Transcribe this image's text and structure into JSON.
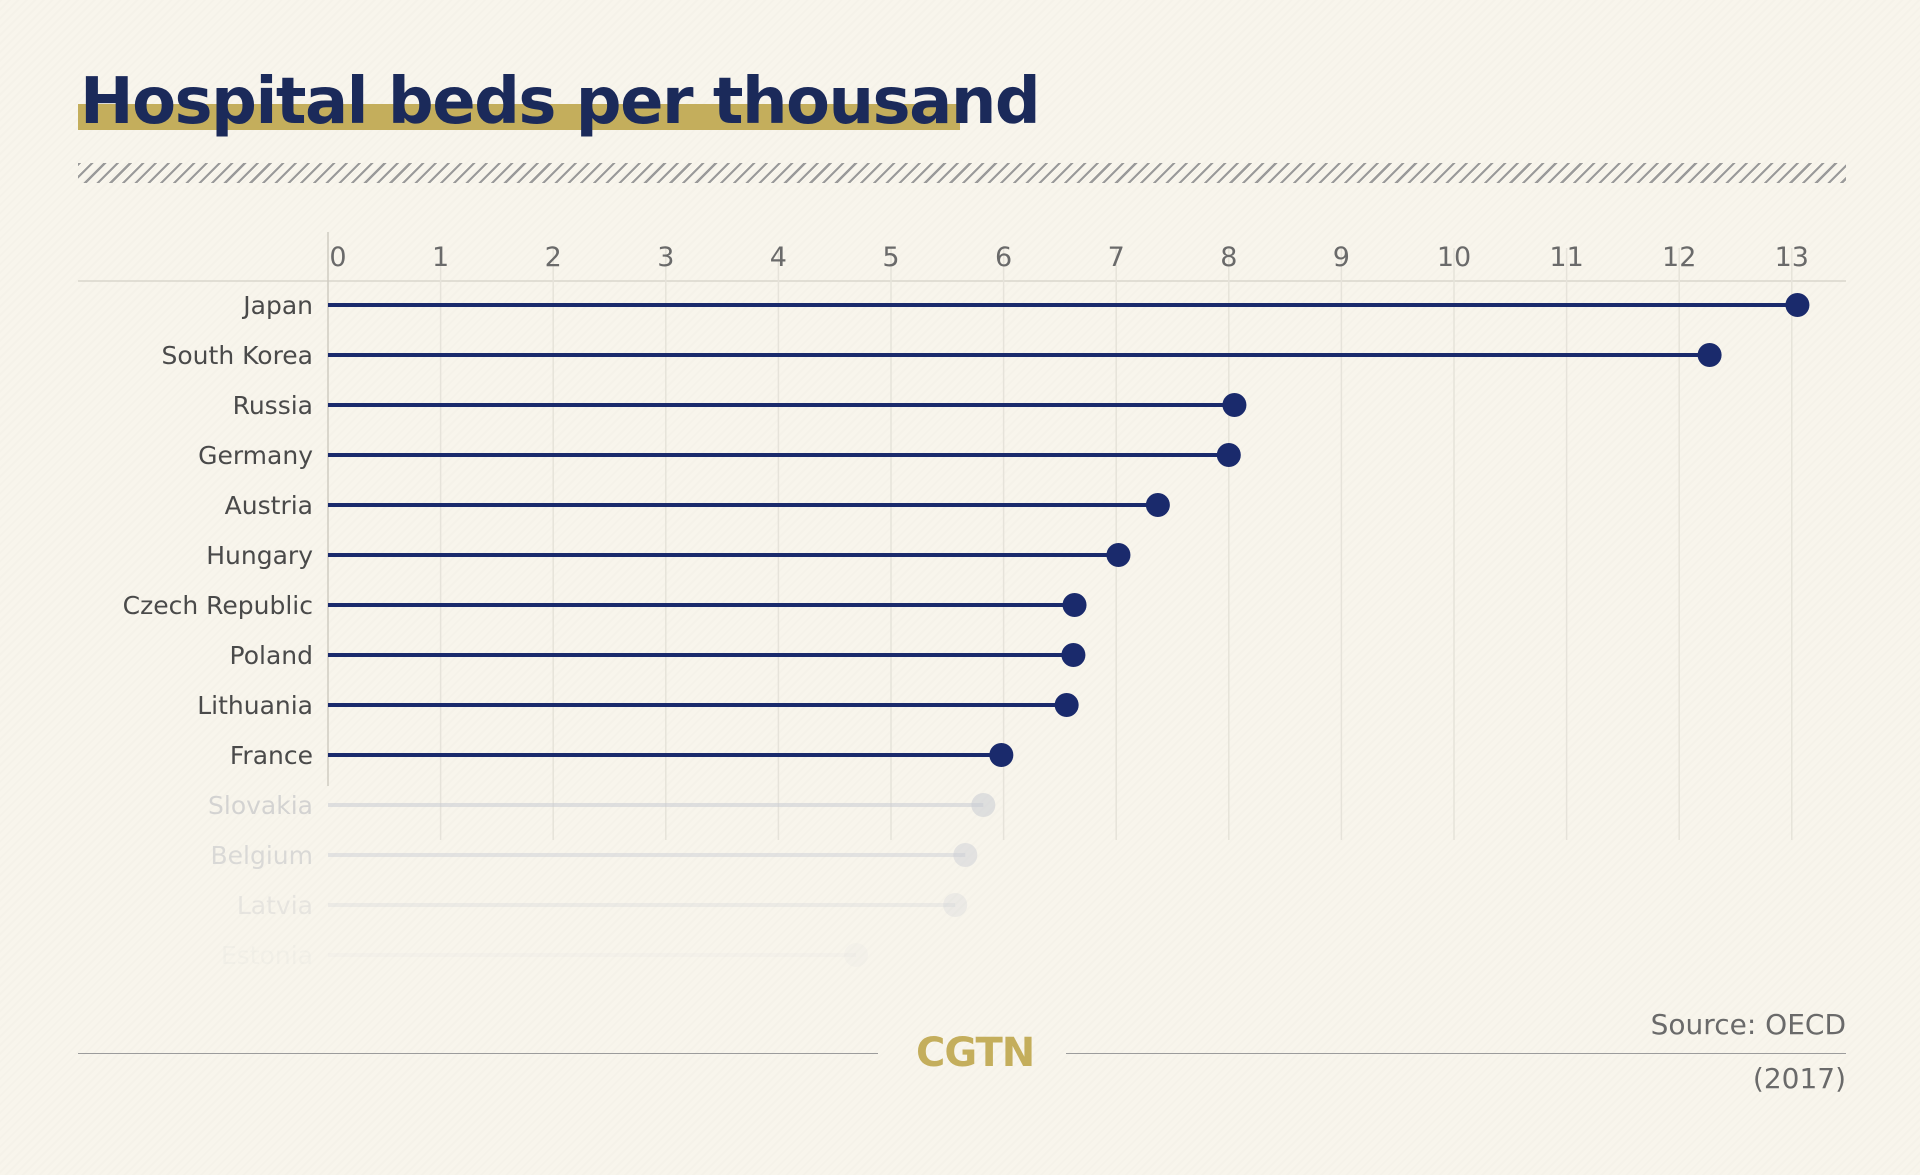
{
  "title": "Hospital beds per thousand",
  "source": "Source: OECD",
  "year": "(2017)",
  "logo": "CGTN",
  "colors": {
    "accent": "#c4ae5c",
    "title": "#1b2a5a",
    "series": "#1a2a6c",
    "faded": "#c9ccd4",
    "label": "#4a4a4a"
  },
  "chart_data": {
    "type": "lollipop",
    "title": "Hospital beds per thousand",
    "xlim": [
      0,
      13
    ],
    "xticks": [
      0,
      1,
      2,
      3,
      4,
      5,
      6,
      7,
      8,
      9,
      10,
      11,
      12,
      13
    ],
    "grid": true,
    "categories": [
      "Japan",
      "South Korea",
      "Russia",
      "Germany",
      "Austria",
      "Hungary",
      "Czech Republic",
      "Poland",
      "Lithuania",
      "France",
      "Slovakia",
      "Belgium",
      "Latvia",
      "Estonia"
    ],
    "values": [
      13.05,
      12.27,
      8.05,
      8.0,
      7.37,
      7.02,
      6.63,
      6.62,
      6.56,
      5.98,
      5.82,
      5.66,
      5.57,
      4.69
    ],
    "fade": [
      1,
      1,
      1,
      1,
      1,
      1,
      1,
      1,
      1,
      1,
      0.55,
      0.45,
      0.25,
      0.08
    ],
    "source": "Source: OECD",
    "period": "(2017)"
  }
}
